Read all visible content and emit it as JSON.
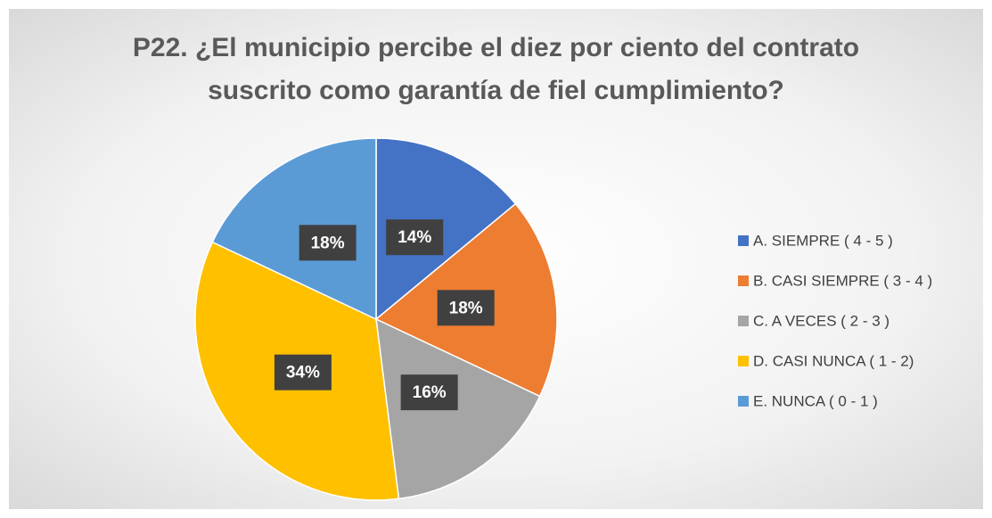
{
  "chart_data": {
    "type": "pie",
    "title": "P22. ¿El municipio percibe el diez por ciento del contrato suscrito como garantía de fiel cumplimiento?",
    "categories": [
      "A. SIEMPRE ( 4 - 5 )",
      "B. CASI SIEMPRE ( 3 - 4 )",
      "C. A VECES ( 2 - 3 )",
      "D. CASI NUNCA ( 1 - 2)",
      "E. NUNCA ( 0 - 1 )"
    ],
    "values": [
      14,
      18,
      16,
      34,
      18
    ],
    "value_labels": [
      "14%",
      "18%",
      "16%",
      "34%",
      "18%"
    ],
    "colors": [
      "#4472c4",
      "#ed7d31",
      "#a5a5a5",
      "#ffc000",
      "#5b9bd5"
    ],
    "legend": "right"
  }
}
